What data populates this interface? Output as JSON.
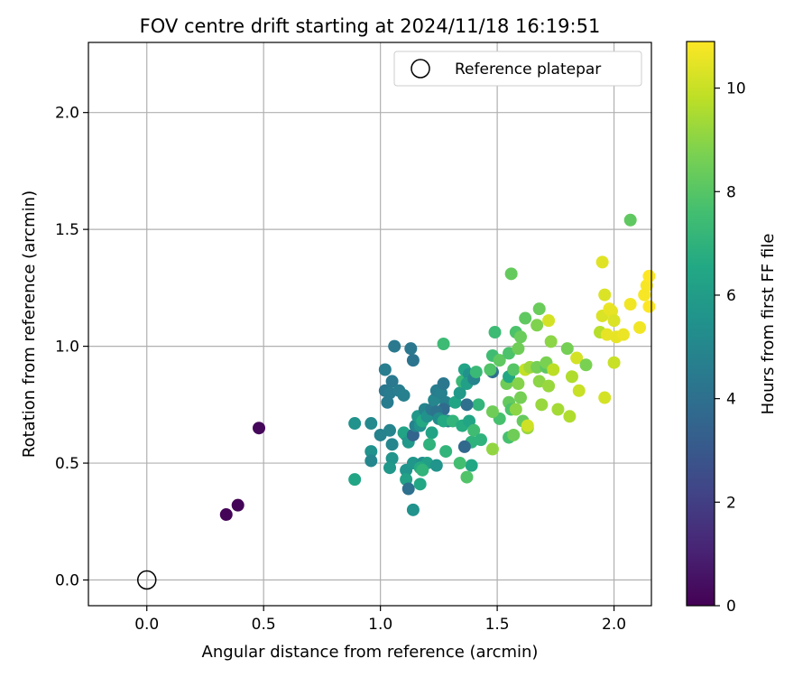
{
  "chart_data": {
    "type": "scatter",
    "title": "FOV centre drift starting at 2024/11/18 16:19:51",
    "xlabel": "Angular distance from reference (arcmin)",
    "ylabel": "Rotation from reference (arcmin)",
    "xlim": [
      -0.25,
      2.16
    ],
    "ylim": [
      -0.11,
      2.3
    ],
    "xticks": [
      0.0,
      0.5,
      1.0,
      1.5,
      2.0
    ],
    "xtick_labels": [
      "0.0",
      "0.5",
      "1.0",
      "1.5",
      "2.0"
    ],
    "yticks": [
      0.0,
      0.5,
      1.0,
      1.5,
      2.0
    ],
    "ytick_labels": [
      "0.0",
      "0.5",
      "1.0",
      "1.5",
      "2.0"
    ],
    "grid": true,
    "legend": {
      "position": "top-right",
      "entries": [
        {
          "label": "Reference platepar",
          "marker": "open-circle"
        }
      ]
    },
    "reference_point": {
      "x": 0.0,
      "y": 0.0
    },
    "colorbar": {
      "label": "Hours from first FF file",
      "colormap": "viridis",
      "range": [
        0,
        10.9
      ],
      "ticks": [
        0,
        2,
        4,
        6,
        8,
        10
      ],
      "tick_labels": [
        "0",
        "2",
        "4",
        "6",
        "8",
        "10"
      ]
    },
    "points": [
      [
        0.34,
        0.28,
        0.1
      ],
      [
        0.39,
        0.32,
        0.1
      ],
      [
        0.48,
        0.65,
        0.2
      ],
      [
        1.06,
        1.0,
        4.4
      ],
      [
        1.13,
        0.99,
        4.3
      ],
      [
        1.14,
        0.94,
        4.2
      ],
      [
        1.02,
        0.9,
        4.6
      ],
      [
        1.05,
        0.85,
        4.4
      ],
      [
        1.02,
        0.81,
        4.3
      ],
      [
        1.04,
        0.8,
        4.5
      ],
      [
        1.08,
        0.81,
        4.6
      ],
      [
        1.1,
        0.79,
        4.7
      ],
      [
        1.03,
        0.76,
        4.5
      ],
      [
        1.11,
        0.62,
        4.4
      ],
      [
        1.04,
        0.64,
        4.9
      ],
      [
        0.96,
        0.67,
        5.1
      ],
      [
        0.89,
        0.67,
        5.5
      ],
      [
        1.0,
        0.62,
        4.8
      ],
      [
        1.05,
        0.58,
        5.0
      ],
      [
        0.96,
        0.55,
        5.5
      ],
      [
        0.96,
        0.51,
        5.0
      ],
      [
        1.05,
        0.52,
        5.6
      ],
      [
        1.04,
        0.48,
        5.8
      ],
      [
        1.11,
        0.47,
        5.6
      ],
      [
        1.14,
        0.5,
        5.7
      ],
      [
        1.11,
        0.43,
        6.2
      ],
      [
        1.12,
        0.39,
        4.0
      ],
      [
        1.14,
        0.3,
        5.5
      ],
      [
        0.89,
        0.43,
        6.4
      ],
      [
        1.1,
        0.63,
        6.3
      ],
      [
        1.12,
        0.59,
        5.8
      ],
      [
        1.14,
        0.62,
        3.5
      ],
      [
        1.15,
        0.66,
        4.8
      ],
      [
        1.17,
        0.66,
        5.5
      ],
      [
        1.16,
        0.7,
        5.8
      ],
      [
        1.19,
        0.73,
        4.9
      ],
      [
        1.18,
        0.68,
        6.6
      ],
      [
        1.2,
        0.7,
        5.5
      ],
      [
        1.22,
        0.73,
        4.4
      ],
      [
        1.23,
        0.77,
        5.0
      ],
      [
        1.24,
        0.81,
        4.6
      ],
      [
        1.26,
        0.8,
        4.7
      ],
      [
        1.27,
        0.84,
        4.3
      ],
      [
        1.28,
        0.76,
        4.7
      ],
      [
        1.27,
        0.73,
        3.8
      ],
      [
        1.29,
        0.68,
        4.8
      ],
      [
        1.24,
        0.72,
        4.2
      ],
      [
        1.25,
        0.69,
        5.2
      ],
      [
        1.22,
        0.63,
        6.3
      ],
      [
        1.21,
        0.58,
        7.0
      ],
      [
        1.18,
        0.5,
        5.4
      ],
      [
        1.2,
        0.5,
        6.1
      ],
      [
        1.24,
        0.49,
        5.6
      ],
      [
        1.17,
        0.48,
        6.6
      ],
      [
        1.18,
        0.47,
        7.1
      ],
      [
        1.17,
        0.41,
        6.5
      ],
      [
        1.28,
        0.55,
        7.1
      ],
      [
        1.27,
        0.68,
        6.6
      ],
      [
        1.31,
        0.68,
        7.1
      ],
      [
        1.35,
        0.66,
        6.7
      ],
      [
        1.38,
        0.68,
        6.4
      ],
      [
        1.32,
        0.76,
        6.4
      ],
      [
        1.34,
        0.8,
        5.9
      ],
      [
        1.35,
        0.85,
        7.3
      ],
      [
        1.36,
        0.9,
        6.3
      ],
      [
        1.38,
        0.88,
        5.5
      ],
      [
        1.37,
        0.84,
        6.1
      ],
      [
        1.4,
        0.86,
        4.9
      ],
      [
        1.41,
        0.89,
        7.3
      ],
      [
        1.42,
        0.75,
        7.1
      ],
      [
        1.37,
        0.75,
        4.0
      ],
      [
        1.39,
        0.59,
        7.0
      ],
      [
        1.36,
        0.57,
        3.7
      ],
      [
        1.39,
        0.49,
        6.5
      ],
      [
        1.34,
        0.5,
        7.6
      ],
      [
        1.37,
        0.44,
        7.9
      ],
      [
        1.4,
        0.64,
        7.5
      ],
      [
        1.43,
        0.6,
        7.0
      ],
      [
        1.27,
        1.01,
        7.4
      ],
      [
        1.48,
        0.89,
        4.0
      ],
      [
        1.48,
        0.96,
        7.5
      ],
      [
        1.49,
        1.06,
        7.4
      ],
      [
        1.47,
        0.9,
        7.9
      ],
      [
        1.51,
        0.69,
        7.7
      ],
      [
        1.48,
        0.72,
        8.5
      ],
      [
        1.51,
        0.94,
        8.2
      ],
      [
        1.54,
        0.84,
        8.5
      ],
      [
        1.55,
        0.87,
        6.5
      ],
      [
        1.55,
        0.76,
        8.3
      ],
      [
        1.56,
        0.73,
        7.8
      ],
      [
        1.55,
        0.61,
        7.7
      ],
      [
        1.57,
        0.62,
        8.5
      ],
      [
        1.48,
        0.56,
        9.1
      ],
      [
        1.56,
        1.31,
        8.3
      ],
      [
        1.55,
        0.97,
        7.8
      ],
      [
        1.59,
        0.99,
        8.5
      ],
      [
        1.58,
        1.06,
        7.8
      ],
      [
        1.6,
        1.04,
        8.4
      ],
      [
        1.62,
        1.12,
        8.2
      ],
      [
        1.57,
        0.9,
        8.0
      ],
      [
        1.59,
        0.84,
        8.9
      ],
      [
        1.6,
        0.78,
        8.6
      ],
      [
        1.58,
        0.73,
        9.0
      ],
      [
        1.61,
        0.68,
        8.3
      ],
      [
        1.63,
        0.65,
        9.2
      ],
      [
        1.63,
        0.66,
        10.1
      ],
      [
        1.62,
        0.9,
        9.9
      ],
      [
        1.64,
        0.91,
        9.3
      ],
      [
        1.67,
        0.91,
        8.6
      ],
      [
        1.68,
        0.85,
        9.0
      ],
      [
        1.69,
        0.75,
        9.2
      ],
      [
        1.71,
        0.91,
        8.1
      ],
      [
        1.71,
        0.93,
        8.7
      ],
      [
        1.72,
        0.83,
        9.2
      ],
      [
        1.74,
        0.9,
        9.8
      ],
      [
        1.68,
        1.16,
        8.4
      ],
      [
        1.67,
        1.09,
        8.8
      ],
      [
        1.72,
        1.11,
        10.2
      ],
      [
        1.73,
        1.02,
        9.0
      ],
      [
        1.76,
        0.73,
        9.4
      ],
      [
        1.8,
        0.99,
        8.6
      ],
      [
        1.81,
        0.7,
        9.6
      ],
      [
        1.82,
        0.87,
        9.6
      ],
      [
        1.84,
        0.95,
        10.2
      ],
      [
        1.85,
        0.81,
        10.0
      ],
      [
        1.88,
        0.92,
        8.7
      ],
      [
        1.95,
        1.36,
        10.4
      ],
      [
        1.96,
        1.22,
        10.3
      ],
      [
        1.95,
        1.13,
        10.3
      ],
      [
        1.94,
        1.06,
        9.7
      ],
      [
        1.97,
        1.05,
        10.5
      ],
      [
        1.98,
        1.16,
        10.6
      ],
      [
        1.99,
        1.15,
        10.5
      ],
      [
        2.0,
        1.11,
        10.3
      ],
      [
        2.01,
        1.04,
        10.5
      ],
      [
        2.04,
        1.05,
        10.6
      ],
      [
        1.96,
        0.78,
        10.2
      ],
      [
        2.0,
        0.93,
        10.0
      ],
      [
        2.07,
        1.54,
        8.2
      ],
      [
        2.07,
        1.18,
        10.7
      ],
      [
        2.11,
        1.08,
        10.7
      ],
      [
        2.13,
        1.22,
        10.8
      ],
      [
        2.14,
        1.26,
        10.8
      ],
      [
        2.15,
        1.3,
        10.9
      ],
      [
        2.15,
        1.17,
        10.9
      ]
    ]
  }
}
